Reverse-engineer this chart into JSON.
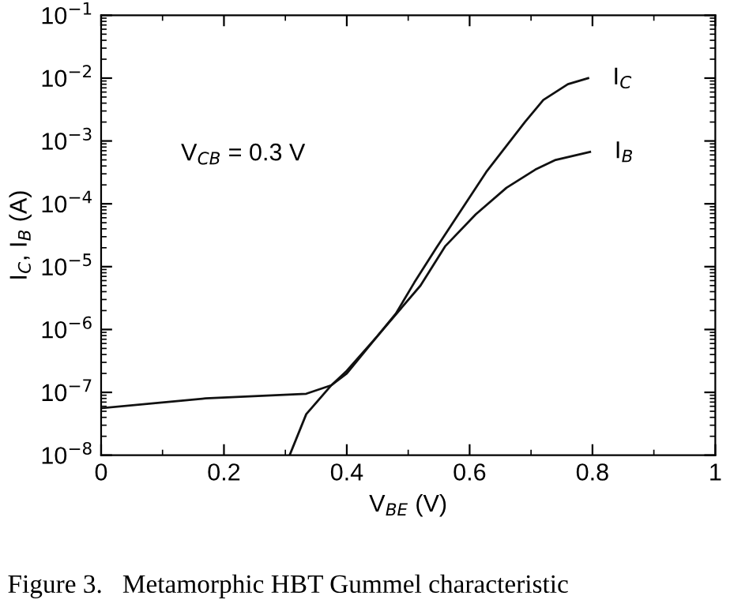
{
  "chart_data": {
    "type": "line",
    "xlabel": "V$_{BE}$ (V)",
    "ylabel": "I$_{C}$, I$_{B}$ (A)",
    "log": "y",
    "xlim": [
      0,
      1
    ],
    "ylim": [
      1e-08,
      0.1
    ],
    "xticks": [
      0,
      0.2,
      0.4,
      0.6,
      0.8,
      1
    ],
    "yticks": [
      {
        "value": 1e-08,
        "label": "10$^{−8}$"
      },
      {
        "value": 1e-07,
        "label": "10$^{−7}$"
      },
      {
        "value": 1e-06,
        "label": "10$^{−6}$"
      },
      {
        "value": 1e-05,
        "label": "10$^{−5}$"
      },
      {
        "value": 0.0001,
        "label": "10$^{−4}$"
      },
      {
        "value": 0.001,
        "label": "10$^{−3}$"
      },
      {
        "value": 0.01,
        "label": "10$^{−2}$"
      },
      {
        "value": 0.1,
        "label": "10$^{−1}$"
      }
    ],
    "grid": false,
    "legend": false,
    "marker": "none",
    "line_style": "solid",
    "series": [
      {
        "name": "I$_{C}$",
        "color": "#111111",
        "x": [
          0.307,
          0.334,
          0.375,
          0.4,
          0.45,
          0.48,
          0.51,
          0.546,
          0.627,
          0.69,
          0.72,
          0.76,
          0.793
        ],
        "values": [
          1e-08,
          4.5e-08,
          1.3e-07,
          2.2e-07,
          7.9e-07,
          1.8e-06,
          5.6e-06,
          2e-05,
          0.00032,
          0.002,
          0.0045,
          0.008,
          0.01
        ]
      },
      {
        "name": "I$_{B}$",
        "color": "#111111",
        "x": [
          0,
          0.17,
          0.334,
          0.375,
          0.4,
          0.45,
          0.52,
          0.56,
          0.61,
          0.66,
          0.707,
          0.74,
          0.796
        ],
        "values": [
          5.6e-08,
          8e-08,
          9.5e-08,
          1.3e-07,
          2e-07,
          7.9e-07,
          5e-06,
          2.1e-05,
          6.8e-05,
          0.00018,
          0.00035,
          0.0005,
          0.00067
        ]
      }
    ],
    "annotations": [
      "V$_{CB}$ = 0.3 V",
      "Figure 3.   Metamorphic HBT Gummel characteristic"
    ]
  }
}
